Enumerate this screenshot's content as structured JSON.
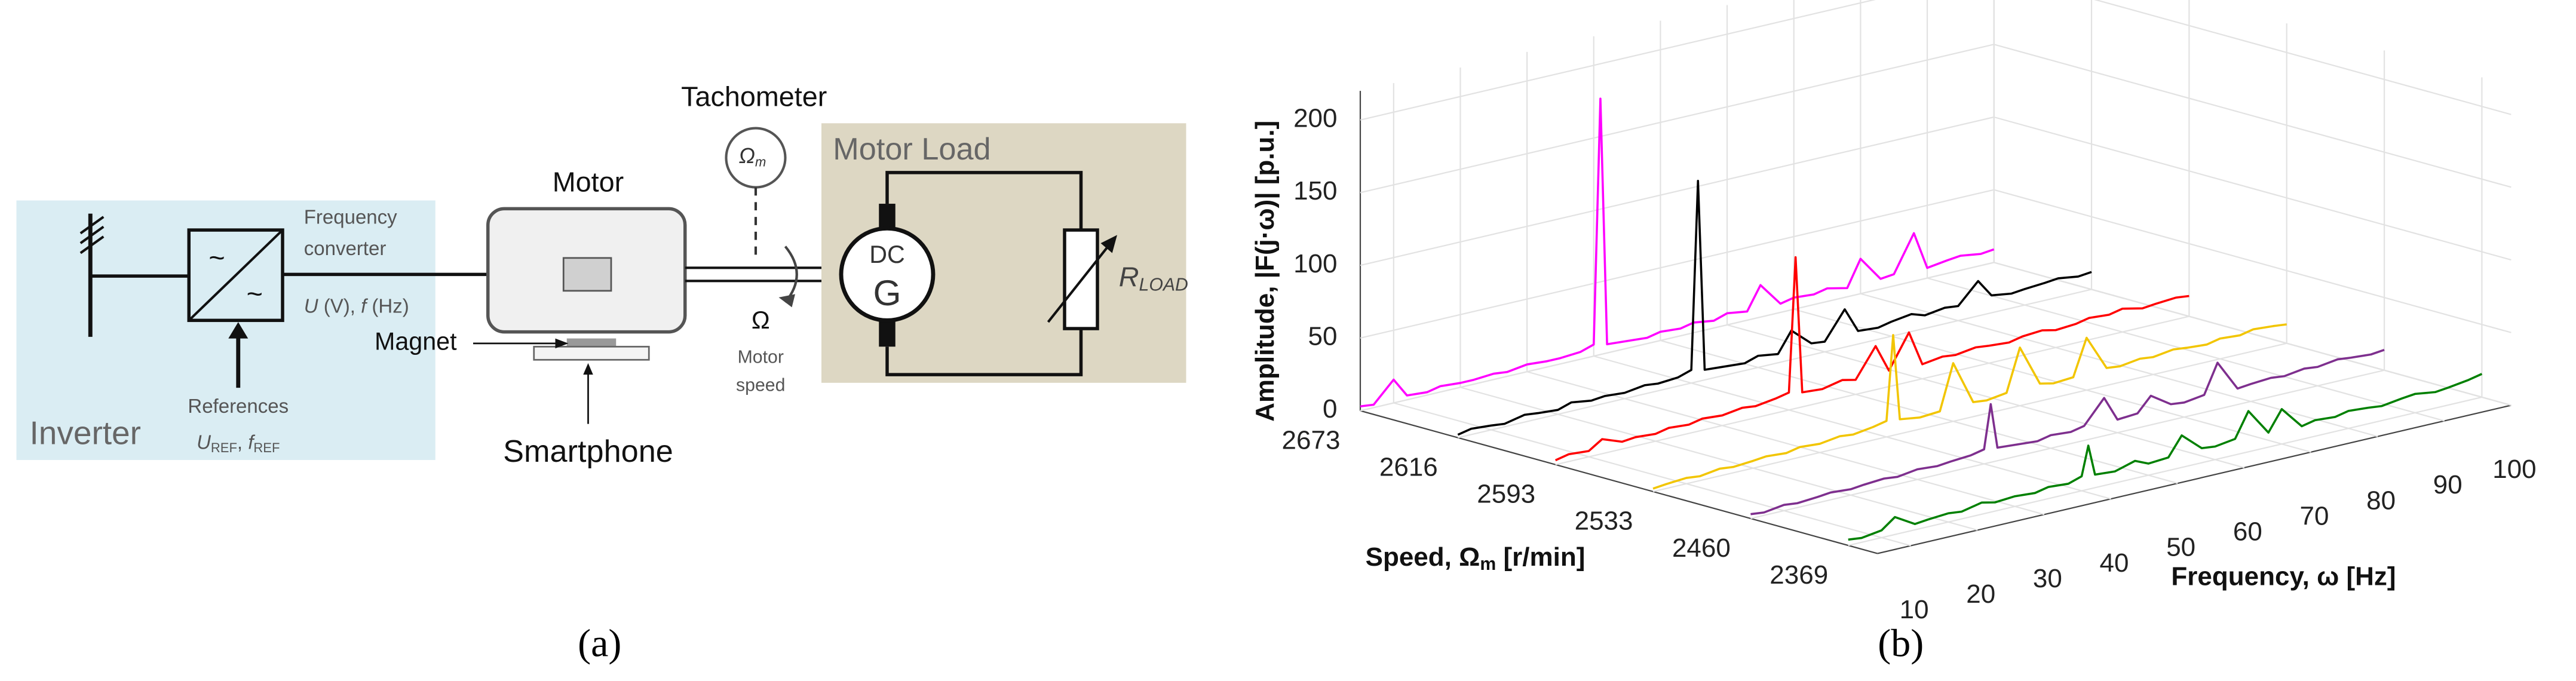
{
  "diagram": {
    "tachometer": "Tachometer",
    "tach_symbol": [
      "Ω",
      "m"
    ],
    "motor": "Motor",
    "motor_load": "Motor Load",
    "freq_converter": [
      "Frequency",
      "converter"
    ],
    "converter_symbols": [
      "~",
      "~"
    ],
    "converter_output": [
      "U",
      " (V),  ",
      "f",
      " (Hz)"
    ],
    "inverter": "Inverter",
    "references": "References",
    "ref_symbols": [
      "U",
      "REF",
      ", ",
      "f",
      "REF"
    ],
    "magnet": "Magnet",
    "smartphone": "Smartphone",
    "speed_symbol": "Ω",
    "motor_speed": [
      "Motor",
      "speed"
    ],
    "generator": [
      "DC",
      "G"
    ],
    "load_resistor": [
      "R",
      "LOAD"
    ]
  },
  "panel_labels": [
    "(a)",
    "(b)"
  ],
  "chart_data": {
    "type": "waterfall",
    "ylabel": "Amplitude, |F(j·ω)| [p.u.]",
    "xlabel": "Frequency, ω [Hz]",
    "zlabel": [
      "Speed, Ω",
      "m",
      " [r/min]"
    ],
    "categories": [
      2673,
      2616,
      2593,
      2533,
      2460,
      2369
    ],
    "x": [
      5,
      7,
      10,
      12,
      15,
      17,
      20,
      22,
      25,
      27,
      30,
      33,
      35,
      38,
      40,
      41,
      42,
      45,
      48,
      50,
      53,
      55,
      58,
      60,
      63,
      65,
      68,
      70,
      73,
      75,
      78,
      80,
      83,
      85,
      88,
      90,
      93,
      95,
      98,
      100
    ],
    "series": [
      {
        "color": "#ff00ff",
        "values": [
          3,
          2,
          16,
          3,
          2,
          4,
          3,
          3,
          4,
          3,
          5,
          4,
          4,
          5,
          8,
          176,
          6,
          5,
          4,
          6,
          5,
          7,
          5,
          8,
          6,
          22,
          6,
          8,
          7,
          9,
          6,
          24,
          7,
          8,
          33,
          7,
          9,
          10,
          8,
          9
        ]
      },
      {
        "color": "#000000",
        "values": [
          2,
          4,
          3,
          2,
          5,
          4,
          3,
          6,
          4,
          5,
          4,
          6,
          5,
          6,
          9,
          138,
          7,
          6,
          5,
          8,
          6,
          20,
          8,
          7,
          26,
          9,
          8,
          10,
          12,
          9,
          11,
          10,
          24,
          12,
          10,
          11,
          12,
          13,
          11,
          12
        ]
      },
      {
        "color": "#ff0000",
        "values": [
          3,
          5,
          4,
          10,
          5,
          6,
          5,
          7,
          6,
          8,
          7,
          9,
          8,
          10,
          12,
          104,
          10,
          9,
          12,
          10,
          30,
          11,
          34,
          10,
          12,
          11,
          13,
          12,
          11,
          13,
          14,
          12,
          13,
          15,
          14,
          16,
          13,
          14,
          15,
          14
        ]
      },
      {
        "color": "#f2c500",
        "values": [
          2,
          3,
          4,
          3,
          5,
          4,
          5,
          6,
          5,
          7,
          6,
          8,
          7,
          9,
          11,
          69,
          10,
          8,
          9,
          40,
          10,
          9,
          11,
          40,
          12,
          10,
          11,
          36,
          12,
          11,
          13,
          12,
          14,
          13,
          12,
          14,
          13,
          15,
          14,
          13
        ]
      },
      {
        "color": "#7e2f8e",
        "values": [
          3,
          2,
          4,
          3,
          4,
          5,
          4,
          5,
          6,
          5,
          7,
          6,
          7,
          8,
          10,
          40,
          9,
          8,
          7,
          9,
          8,
          10,
          26,
          9,
          10,
          20,
          11,
          10,
          12,
          32,
          11,
          12,
          13,
          12,
          14,
          13,
          15,
          14,
          13,
          14
        ]
      },
      {
        "color": "#008000",
        "values": [
          4,
          3,
          5,
          12,
          4,
          5,
          6,
          5,
          8,
          6,
          7,
          6,
          8,
          7,
          10,
          30,
          9,
          8,
          12,
          8,
          9,
          22,
          10,
          9,
          11,
          28,
          10,
          24,
          9,
          11,
          10,
          12,
          11,
          10,
          12,
          13,
          11,
          12,
          14,
          16
        ]
      }
    ],
    "xlim": [
      5,
      100
    ],
    "xticks": [
      10,
      20,
      30,
      40,
      50,
      60,
      70,
      80,
      90,
      100
    ],
    "ylim": [
      0,
      220
    ],
    "yticks": [
      0,
      50,
      100,
      150,
      200
    ],
    "grid": true
  }
}
